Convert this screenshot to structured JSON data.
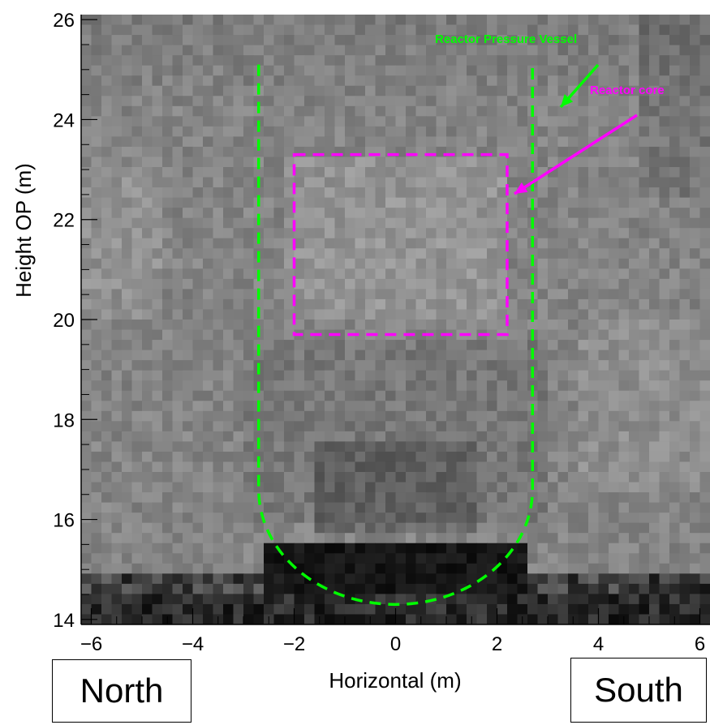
{
  "chart_data": {
    "type": "heatmap",
    "title": "",
    "xlabel": "Horizontal (m)",
    "ylabel": "Height OP (m)",
    "xlim": [
      -6.2,
      6.2
    ],
    "ylim": [
      13.9,
      26.1
    ],
    "x_ticks": [
      -6,
      -4,
      -2,
      0,
      2,
      4,
      6
    ],
    "y_ticks": [
      14,
      16,
      18,
      20,
      22,
      24,
      26
    ],
    "x_tick_labels": [
      "−6",
      "−4",
      "−2",
      "0",
      "2",
      "4",
      "6"
    ],
    "y_tick_labels": [
      "14",
      "16",
      "18",
      "20",
      "22",
      "24",
      "26"
    ],
    "colormap": "grayscale",
    "grid": false,
    "overlays": {
      "pressure_vessel": {
        "label": "Reactor Pressure Vessel",
        "color": "#00ff00",
        "x_left": -2.7,
        "x_right": 2.7,
        "y_top": 25.1,
        "y_straight_bottom": 16.6,
        "y_bottom": 14.3
      },
      "reactor_core": {
        "label": "Reactor core",
        "color": "#ff00ff",
        "x_left": -2.0,
        "x_right": 2.2,
        "y_bottom": 19.7,
        "y_top": 23.3
      }
    }
  },
  "direction_labels": {
    "north": "North",
    "south": "South"
  }
}
